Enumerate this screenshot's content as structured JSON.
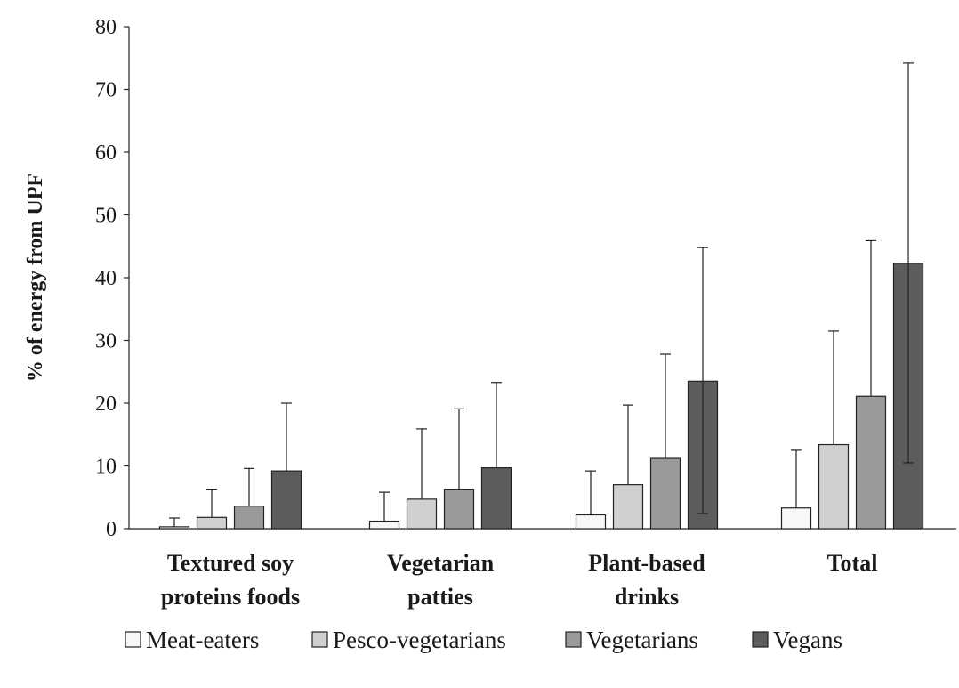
{
  "chart_data": {
    "type": "bar",
    "title": "",
    "ylabel": "% of energy from UPF",
    "xlabel": "",
    "ylim": [
      0,
      80
    ],
    "yticks": [
      0,
      10,
      20,
      30,
      40,
      50,
      60,
      70,
      80
    ],
    "categories": [
      [
        "Textured soy",
        "proteins foods"
      ],
      [
        "Vegetarian",
        "patties"
      ],
      [
        "Plant-based",
        "drinks"
      ],
      [
        "Total"
      ]
    ],
    "series": [
      {
        "name": "Meat-eaters",
        "color": "#f7f7f7",
        "values": [
          0.3,
          1.2,
          2.2,
          3.3
        ],
        "error_upper": [
          1.7,
          5.8,
          9.2,
          12.5
        ]
      },
      {
        "name": "Pesco-vegetarians",
        "color": "#d0d0d0",
        "values": [
          1.8,
          4.7,
          7.0,
          13.4
        ],
        "error_upper": [
          6.3,
          15.9,
          19.7,
          31.5
        ]
      },
      {
        "name": "Vegetarians",
        "color": "#9a9a9a",
        "values": [
          3.6,
          6.3,
          11.2,
          21.1
        ],
        "error_upper": [
          9.6,
          19.1,
          27.8,
          45.9
        ]
      },
      {
        "name": "Vegans",
        "color": "#5c5c5c",
        "values": [
          9.2,
          9.7,
          23.5,
          42.3
        ],
        "error_upper": [
          20.0,
          23.3,
          44.8,
          74.2
        ],
        "error_lower": [
          null,
          null,
          2.4,
          10.5
        ]
      }
    ],
    "grid": false,
    "legend_position": "bottom"
  }
}
